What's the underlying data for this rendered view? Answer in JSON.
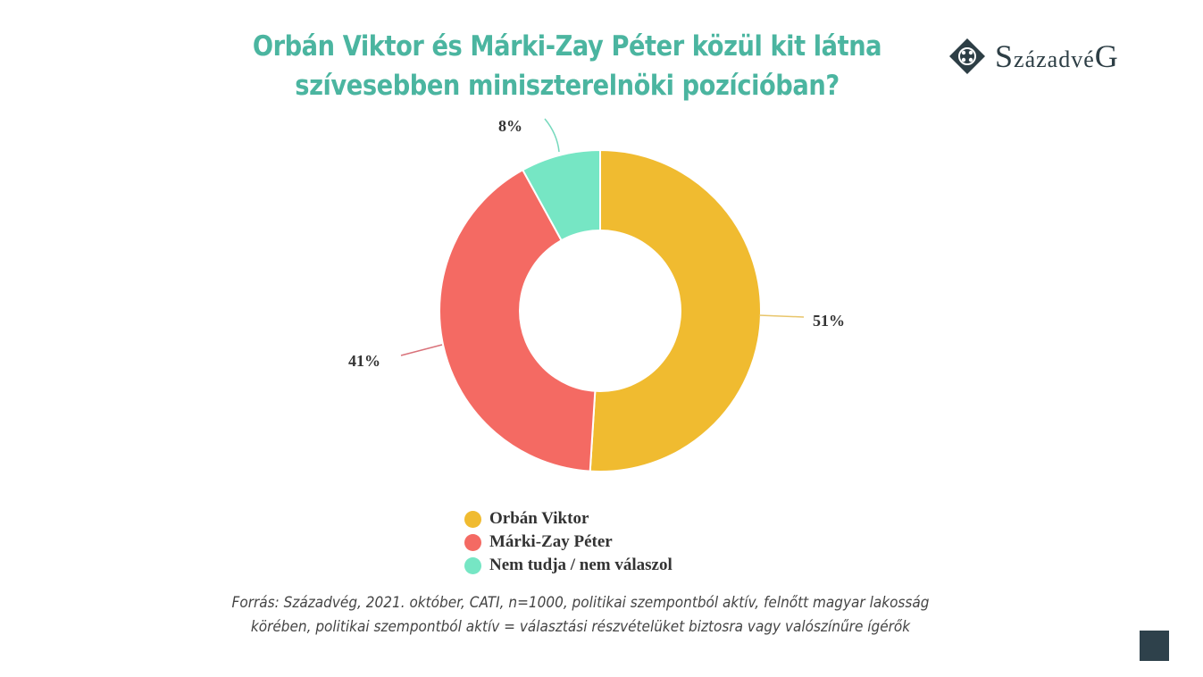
{
  "title": {
    "line1": "Orbán Viktor és Márki-Zay Péter közül kit látna",
    "line2": "szívesebben miniszterelnöki pozícióban?"
  },
  "logo": {
    "first": "S",
    "rest": "zázadvé",
    "last": "G",
    "icon": "diamond-ornament-icon"
  },
  "chart_data": {
    "type": "pie",
    "subtype": "donut",
    "title": "Orbán Viktor és Márki-Zay Péter közül kit látna szívesebben miniszterelnöki pozícióban?",
    "categories": [
      "Orbán Viktor",
      "Márki-Zay Péter",
      "Nem tudja / nem válaszol"
    ],
    "values": [
      51,
      41,
      8
    ],
    "unit": "%",
    "colors": [
      "#f0bb30",
      "#f46a63",
      "#76e6c4"
    ],
    "data_labels": [
      "51%",
      "41%",
      "8%"
    ],
    "legend_position": "bottom"
  },
  "labels": {
    "orban": "51%",
    "mz": "41%",
    "nt": "8%"
  },
  "legend": [
    {
      "label": "Orbán Viktor",
      "color": "#f0bb30"
    },
    {
      "label": "Márki-Zay Péter",
      "color": "#f46a63"
    },
    {
      "label": "Nem tudja / nem válaszol",
      "color": "#76e6c4"
    }
  ],
  "source": {
    "line1": "Forrás: Századvég, 2021. október, CATI, n=1000, politikai szempontból aktív, felnőtt magyar lakosság",
    "line2": "körében, politikai szempontból aktív = választási részvételüket biztosra vagy valószínűre ígérők"
  },
  "colors": {
    "title": "#4bb5a0",
    "logo": "#2d3e45",
    "corner": "#2e414b"
  }
}
